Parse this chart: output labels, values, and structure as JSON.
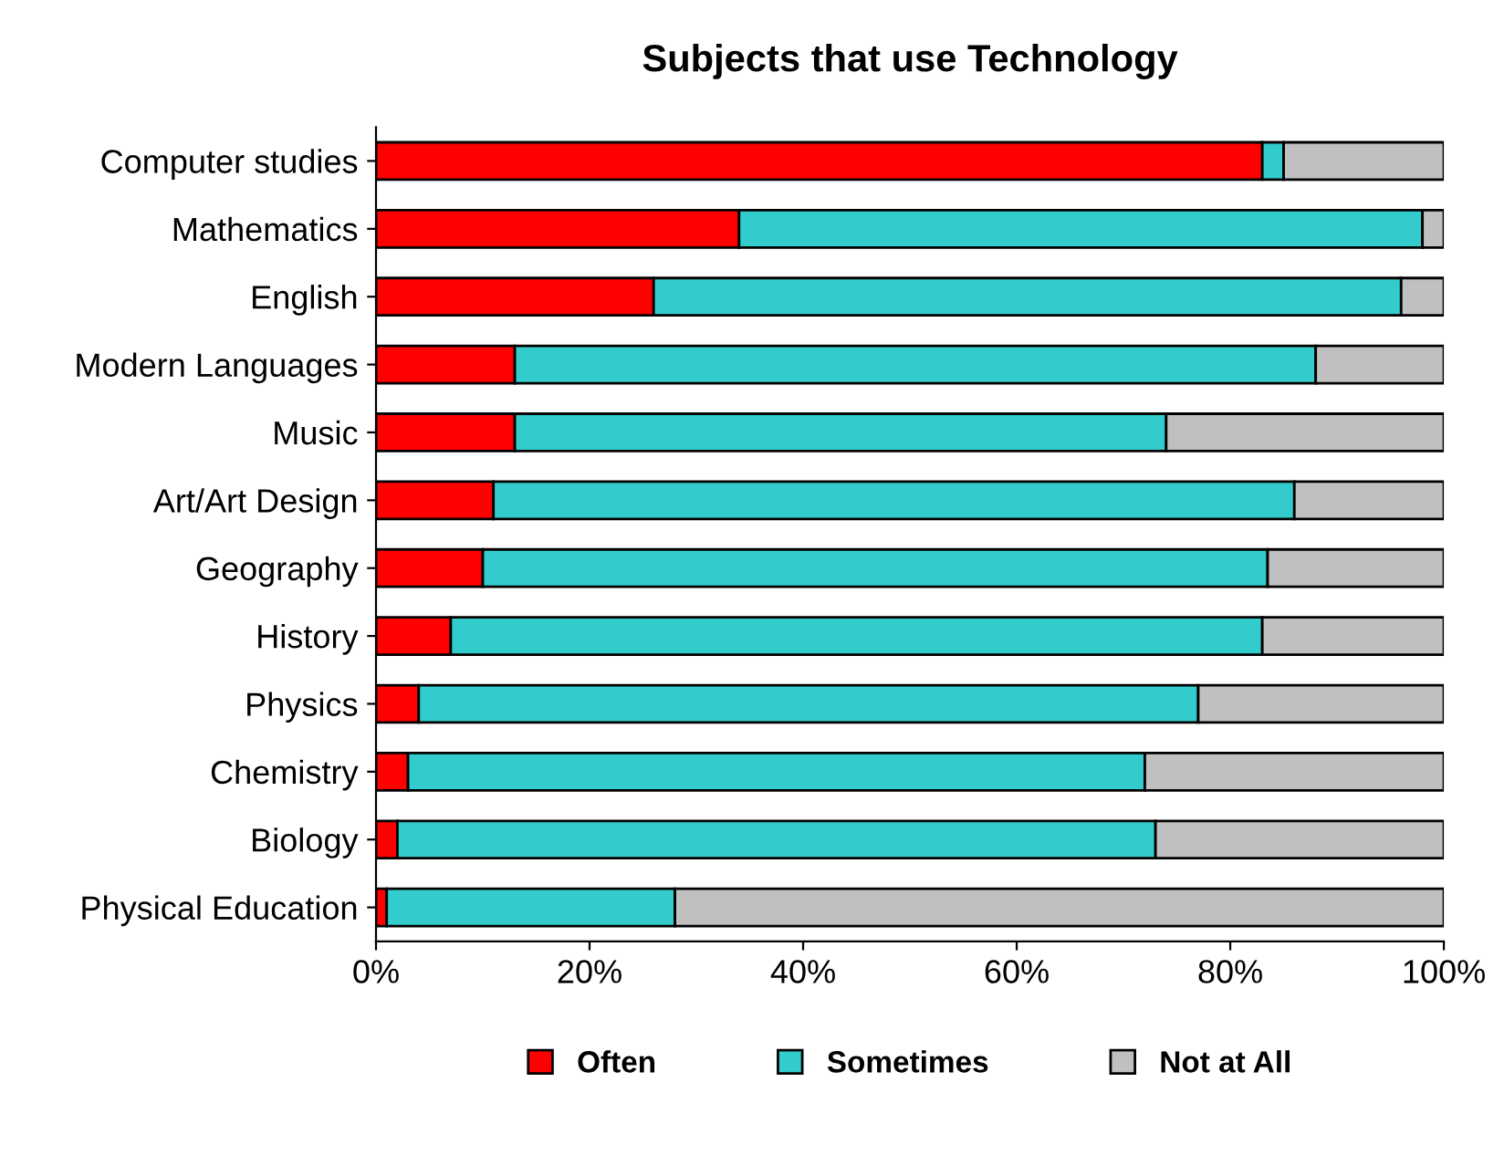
{
  "chart_data": {
    "type": "bar",
    "orientation": "horizontal",
    "stacked": true,
    "title": "Subjects that use Technology",
    "categories": [
      "Computer studies",
      "Mathematics",
      "English",
      "Modern Languages",
      "Music",
      "Art/Art Design",
      "Geography",
      "History",
      "Physics",
      "Chemistry",
      "Biology",
      "Physical Education"
    ],
    "series": [
      {
        "name": "Often",
        "color": "#ff0000",
        "values": [
          83,
          34,
          26,
          13,
          13,
          11,
          10,
          7,
          4,
          3,
          2,
          1
        ]
      },
      {
        "name": "Sometimes",
        "color": "#33cccc",
        "values": [
          2,
          64,
          70,
          75,
          61,
          75,
          73.5,
          76,
          73,
          69,
          71,
          27
        ]
      },
      {
        "name": "Not at All",
        "color": "#c0c0c0",
        "values": [
          15,
          2,
          4,
          12,
          26,
          14,
          16.5,
          17,
          23,
          28,
          27,
          72
        ]
      }
    ],
    "xlim": [
      0,
      100
    ],
    "xticks": [
      {
        "value": 0,
        "label": "0%"
      },
      {
        "value": 20,
        "label": "20%"
      },
      {
        "value": 40,
        "label": "40%"
      },
      {
        "value": 60,
        "label": "60%"
      },
      {
        "value": 80,
        "label": "80%"
      },
      {
        "value": 100,
        "label": "100%"
      }
    ],
    "grid": false,
    "legend": "bottom"
  }
}
